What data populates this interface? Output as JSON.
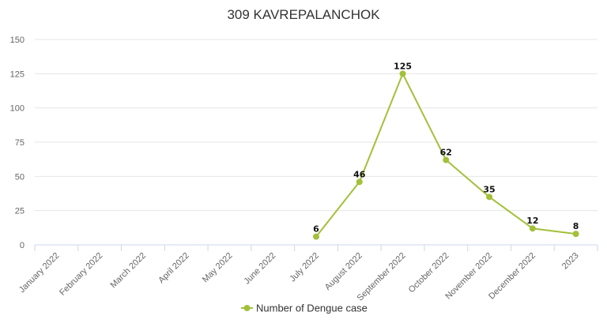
{
  "chart_data": {
    "type": "line",
    "title": "309 KAVREPALANCHOK",
    "xlabel": "",
    "ylabel": "",
    "ylim": [
      0,
      150
    ],
    "yticks": [
      0,
      25,
      50,
      75,
      100,
      125,
      150
    ],
    "grid": true,
    "legend_position": "bottom-center",
    "categories": [
      "January 2022",
      "February 2022",
      "March 2022",
      "April 2022",
      "May 2022",
      "June 2022",
      "July 2022",
      "August 2022",
      "September 2022",
      "October 2022",
      "November 2022",
      "December 2022",
      "2023"
    ],
    "series": [
      {
        "name": "Number of Dengue case",
        "color": "#a2c03a",
        "values": [
          null,
          null,
          null,
          null,
          null,
          null,
          6,
          46,
          125,
          62,
          35,
          12,
          8
        ]
      }
    ]
  }
}
